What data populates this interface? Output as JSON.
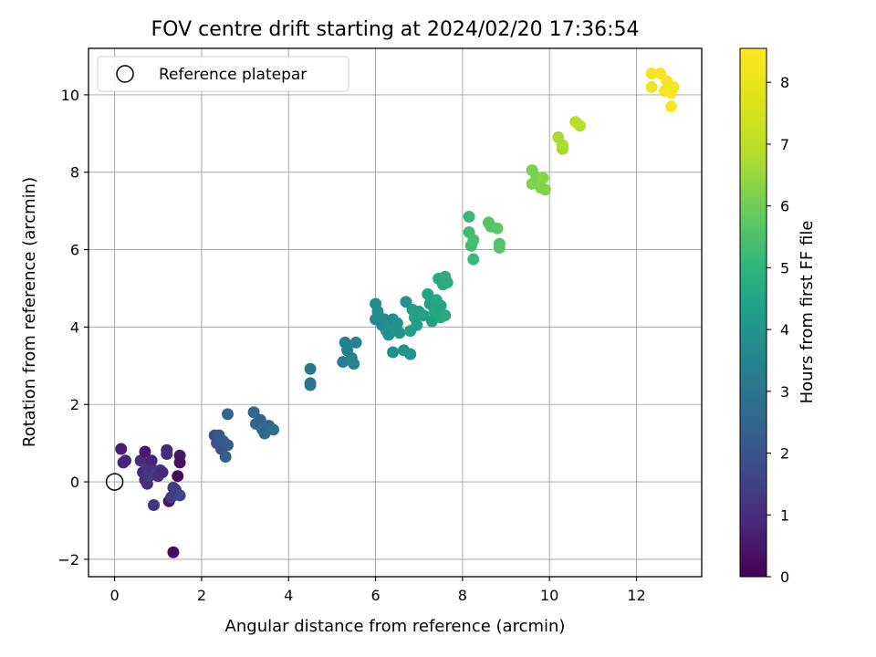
{
  "chart_data": {
    "type": "scatter",
    "title": "FOV centre drift starting at 2024/02/20 17:36:54",
    "xlabel": "Angular distance from reference (arcmin)",
    "ylabel": "Rotation from reference (arcmin)",
    "xlim": [
      -0.6,
      13.5
    ],
    "ylim": [
      -2.45,
      11.2
    ],
    "xticks": [
      0,
      2,
      4,
      6,
      8,
      10,
      12
    ],
    "yticks": [
      -2,
      0,
      2,
      4,
      6,
      8,
      10
    ],
    "grid": true,
    "legend": {
      "position": "top-left",
      "entries": [
        "Reference platepar"
      ]
    },
    "reference_point": {
      "x": 0,
      "y": 0,
      "label": "Reference platepar"
    },
    "colorbar": {
      "label": "Hours from first FF file",
      "colormap": "viridis",
      "min": 0,
      "max": 8.55,
      "ticks": [
        0,
        1,
        2,
        3,
        4,
        5,
        6,
        7,
        8
      ]
    },
    "points": [
      {
        "x": 0.15,
        "y": 0.85,
        "c": 0.7
      },
      {
        "x": 0.2,
        "y": 0.5,
        "c": 0.8
      },
      {
        "x": 0.25,
        "y": 0.55,
        "c": 0.8
      },
      {
        "x": 0.6,
        "y": 0.55,
        "c": 1.0
      },
      {
        "x": 0.65,
        "y": 0.25,
        "c": 0.9
      },
      {
        "x": 0.7,
        "y": 0.78,
        "c": 0.6
      },
      {
        "x": 0.7,
        "y": 0.05,
        "c": 1.1
      },
      {
        "x": 0.75,
        "y": 0.35,
        "c": 1.2
      },
      {
        "x": 0.75,
        "y": -0.05,
        "c": 1.0
      },
      {
        "x": 0.8,
        "y": 0.15,
        "c": 1.3
      },
      {
        "x": 0.85,
        "y": 0.55,
        "c": 0.8
      },
      {
        "x": 0.9,
        "y": 0.3,
        "c": 1.1
      },
      {
        "x": 0.95,
        "y": 0.2,
        "c": 1.4
      },
      {
        "x": 0.9,
        "y": -0.6,
        "c": 1.2
      },
      {
        "x": 1.0,
        "y": 0.15,
        "c": 1.0
      },
      {
        "x": 1.05,
        "y": 0.3,
        "c": 1.2
      },
      {
        "x": 1.1,
        "y": 0.25,
        "c": 0.9
      },
      {
        "x": 1.2,
        "y": 0.82,
        "c": 0.8
      },
      {
        "x": 1.2,
        "y": 0.72,
        "c": 1.0
      },
      {
        "x": 1.25,
        "y": -0.5,
        "c": 0.4
      },
      {
        "x": 1.3,
        "y": -0.4,
        "c": 1.3
      },
      {
        "x": 1.35,
        "y": -0.15,
        "c": 1.5
      },
      {
        "x": 1.4,
        "y": -0.2,
        "c": 1.4
      },
      {
        "x": 1.45,
        "y": 0.15,
        "c": 0.2
      },
      {
        "x": 1.5,
        "y": 0.68,
        "c": 0.5
      },
      {
        "x": 1.5,
        "y": 0.5,
        "c": 0.4
      },
      {
        "x": 1.5,
        "y": -0.35,
        "c": 1.6
      },
      {
        "x": 1.35,
        "y": -1.82,
        "c": 0.3
      },
      {
        "x": 2.3,
        "y": 1.2,
        "c": 1.9
      },
      {
        "x": 2.35,
        "y": 1.0,
        "c": 2.0
      },
      {
        "x": 2.4,
        "y": 1.2,
        "c": 2.1
      },
      {
        "x": 2.45,
        "y": 0.85,
        "c": 2.0
      },
      {
        "x": 2.5,
        "y": 1.05,
        "c": 2.2
      },
      {
        "x": 2.55,
        "y": 0.65,
        "c": 2.3
      },
      {
        "x": 2.6,
        "y": 0.95,
        "c": 2.2
      },
      {
        "x": 2.6,
        "y": 1.75,
        "c": 2.5
      },
      {
        "x": 3.2,
        "y": 1.8,
        "c": 2.6
      },
      {
        "x": 3.25,
        "y": 1.5,
        "c": 2.5
      },
      {
        "x": 3.35,
        "y": 1.6,
        "c": 2.4
      },
      {
        "x": 3.4,
        "y": 1.35,
        "c": 2.7
      },
      {
        "x": 3.45,
        "y": 1.25,
        "c": 2.6
      },
      {
        "x": 3.55,
        "y": 1.45,
        "c": 2.5
      },
      {
        "x": 3.65,
        "y": 1.35,
        "c": 2.8
      },
      {
        "x": 4.5,
        "y": 2.92,
        "c": 3.1
      },
      {
        "x": 4.5,
        "y": 2.55,
        "c": 3.0
      },
      {
        "x": 4.5,
        "y": 2.5,
        "c": 3.0
      },
      {
        "x": 5.25,
        "y": 3.1,
        "c": 3.3
      },
      {
        "x": 5.3,
        "y": 3.6,
        "c": 3.4
      },
      {
        "x": 5.35,
        "y": 3.4,
        "c": 3.3
      },
      {
        "x": 5.45,
        "y": 3.2,
        "c": 3.4
      },
      {
        "x": 5.5,
        "y": 3.05,
        "c": 3.5
      },
      {
        "x": 5.55,
        "y": 3.6,
        "c": 3.5
      },
      {
        "x": 6.0,
        "y": 4.6,
        "c": 3.8
      },
      {
        "x": 6.0,
        "y": 4.2,
        "c": 3.7
      },
      {
        "x": 6.05,
        "y": 4.4,
        "c": 3.8
      },
      {
        "x": 6.15,
        "y": 4.05,
        "c": 3.6
      },
      {
        "x": 6.2,
        "y": 4.2,
        "c": 3.8
      },
      {
        "x": 6.25,
        "y": 3.9,
        "c": 3.9
      },
      {
        "x": 6.3,
        "y": 3.8,
        "c": 3.8
      },
      {
        "x": 6.35,
        "y": 4.05,
        "c": 3.9
      },
      {
        "x": 6.4,
        "y": 4.2,
        "c": 3.7
      },
      {
        "x": 6.4,
        "y": 3.35,
        "c": 3.8
      },
      {
        "x": 6.45,
        "y": 3.95,
        "c": 4.0
      },
      {
        "x": 6.5,
        "y": 4.1,
        "c": 3.9
      },
      {
        "x": 6.55,
        "y": 3.85,
        "c": 4.0
      },
      {
        "x": 6.65,
        "y": 3.4,
        "c": 3.9
      },
      {
        "x": 6.7,
        "y": 4.65,
        "c": 3.9
      },
      {
        "x": 6.8,
        "y": 3.3,
        "c": 4.0
      },
      {
        "x": 6.8,
        "y": 3.9,
        "c": 4.3
      },
      {
        "x": 6.85,
        "y": 4.45,
        "c": 4.2
      },
      {
        "x": 6.9,
        "y": 4.25,
        "c": 4.4
      },
      {
        "x": 6.95,
        "y": 4.05,
        "c": 4.3
      },
      {
        "x": 7.0,
        "y": 4.4,
        "c": 4.2
      },
      {
        "x": 7.1,
        "y": 4.3,
        "c": 4.4
      },
      {
        "x": 7.2,
        "y": 4.85,
        "c": 4.5
      },
      {
        "x": 7.25,
        "y": 4.6,
        "c": 4.4
      },
      {
        "x": 7.3,
        "y": 4.15,
        "c": 4.3
      },
      {
        "x": 7.35,
        "y": 4.4,
        "c": 4.6
      },
      {
        "x": 7.4,
        "y": 4.7,
        "c": 4.6
      },
      {
        "x": 7.45,
        "y": 5.25,
        "c": 4.7
      },
      {
        "x": 7.5,
        "y": 4.55,
        "c": 4.5
      },
      {
        "x": 7.5,
        "y": 4.25,
        "c": 4.6
      },
      {
        "x": 7.55,
        "y": 5.1,
        "c": 4.7
      },
      {
        "x": 7.6,
        "y": 5.3,
        "c": 4.8
      },
      {
        "x": 7.6,
        "y": 4.3,
        "c": 4.7
      },
      {
        "x": 7.65,
        "y": 5.15,
        "c": 4.8
      },
      {
        "x": 8.15,
        "y": 6.85,
        "c": 5.2
      },
      {
        "x": 8.15,
        "y": 6.45,
        "c": 5.3
      },
      {
        "x": 8.2,
        "y": 6.1,
        "c": 5.3
      },
      {
        "x": 8.25,
        "y": 6.25,
        "c": 5.4
      },
      {
        "x": 8.25,
        "y": 5.75,
        "c": 5.2
      },
      {
        "x": 8.6,
        "y": 6.7,
        "c": 5.6
      },
      {
        "x": 8.65,
        "y": 6.6,
        "c": 5.6
      },
      {
        "x": 8.8,
        "y": 6.55,
        "c": 5.7
      },
      {
        "x": 8.85,
        "y": 6.15,
        "c": 5.5
      },
      {
        "x": 8.85,
        "y": 6.05,
        "c": 5.6
      },
      {
        "x": 9.6,
        "y": 8.05,
        "c": 6.1
      },
      {
        "x": 9.6,
        "y": 7.7,
        "c": 6.2
      },
      {
        "x": 9.7,
        "y": 7.85,
        "c": 6.1
      },
      {
        "x": 9.8,
        "y": 7.6,
        "c": 6.2
      },
      {
        "x": 9.85,
        "y": 7.85,
        "c": 6.3
      },
      {
        "x": 9.9,
        "y": 7.55,
        "c": 6.2
      },
      {
        "x": 10.2,
        "y": 8.9,
        "c": 6.7
      },
      {
        "x": 10.3,
        "y": 8.6,
        "c": 6.6
      },
      {
        "x": 10.3,
        "y": 8.7,
        "c": 6.7
      },
      {
        "x": 10.6,
        "y": 9.3,
        "c": 6.9
      },
      {
        "x": 10.7,
        "y": 9.2,
        "c": 6.9
      },
      {
        "x": 12.35,
        "y": 10.55,
        "c": 8.2
      },
      {
        "x": 12.35,
        "y": 10.2,
        "c": 8.1
      },
      {
        "x": 12.55,
        "y": 10.55,
        "c": 8.3
      },
      {
        "x": 12.65,
        "y": 10.1,
        "c": 8.3
      },
      {
        "x": 12.7,
        "y": 10.35,
        "c": 8.4
      },
      {
        "x": 12.75,
        "y": 10.2,
        "c": 8.4
      },
      {
        "x": 12.8,
        "y": 10.05,
        "c": 8.5
      },
      {
        "x": 12.85,
        "y": 10.2,
        "c": 8.3
      },
      {
        "x": 12.8,
        "y": 9.7,
        "c": 8.5
      }
    ]
  }
}
